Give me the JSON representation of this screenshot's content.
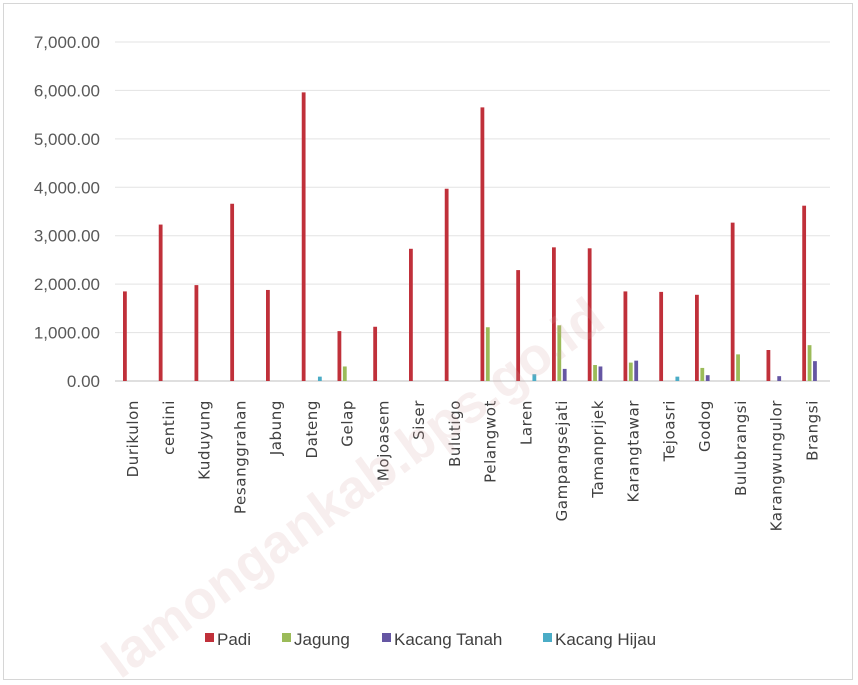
{
  "chart_data": {
    "type": "bar",
    "title": "",
    "xlabel": "",
    "ylabel": "",
    "ylim": [
      0,
      7000
    ],
    "yticks": [
      "0.00",
      "1,000.00",
      "2,000.00",
      "3,000.00",
      "4,000.00",
      "5,000.00",
      "6,000.00",
      "7,000.00"
    ],
    "grid": true,
    "legend_position": "bottom",
    "categories": [
      "Durikulon",
      "centini",
      "Kuduyung",
      "Pesanggrahan",
      "Jabung",
      "Dateng",
      "Gelap",
      "Mojoasem",
      "Siser",
      "Bulutigo",
      "Pelangwot",
      "Laren",
      "Gampangsejati",
      "Tamanprijek",
      "Karangtawar",
      "Tejoasri",
      "Godog",
      "Bulubrangsi",
      "Karangwungulor",
      "Brangsi"
    ],
    "series": [
      {
        "name": "Padi",
        "color": "#c0303a",
        "values": [
          1850,
          3230,
          1980,
          3660,
          1880,
          5960,
          1030,
          1120,
          2730,
          3970,
          5650,
          2290,
          2760,
          2740,
          1850,
          1840,
          1780,
          3270,
          640,
          3620
        ]
      },
      {
        "name": "Jagung",
        "color": "#9bbb59",
        "values": [
          0,
          0,
          0,
          0,
          0,
          0,
          300,
          0,
          0,
          0,
          1110,
          0,
          1150,
          330,
          380,
          0,
          270,
          550,
          0,
          740
        ]
      },
      {
        "name": "Kacang Tanah",
        "color": "#6556a3",
        "values": [
          0,
          0,
          0,
          0,
          0,
          0,
          0,
          0,
          0,
          0,
          0,
          0,
          250,
          300,
          420,
          0,
          120,
          0,
          100,
          410
        ]
      },
      {
        "name": "Kacang Hijau",
        "color": "#4bacc6",
        "values": [
          0,
          0,
          0,
          0,
          0,
          90,
          0,
          0,
          0,
          0,
          0,
          140,
          0,
          0,
          0,
          90,
          0,
          0,
          0,
          0
        ]
      }
    ]
  },
  "watermark_text": "lamongankab.bps.go.id"
}
